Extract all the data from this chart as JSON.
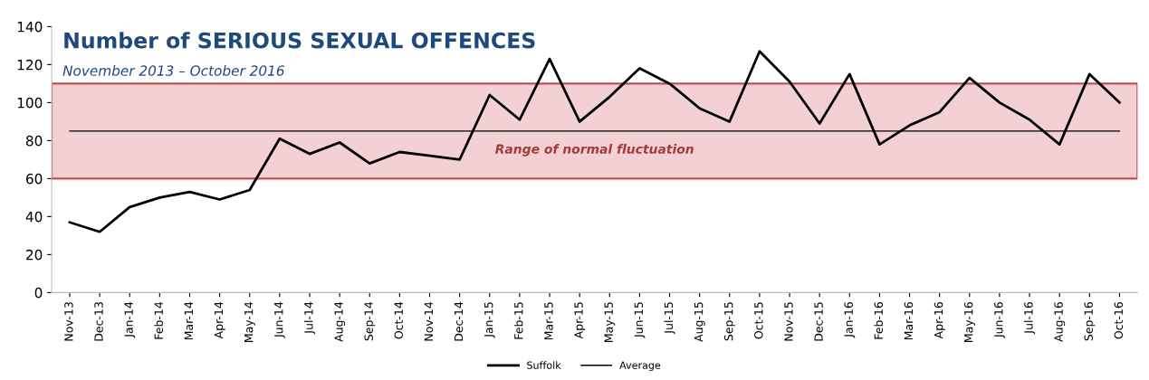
{
  "chart_data": {
    "type": "line",
    "title": "Number of SERIOUS SEXUAL OFFENCES",
    "subtitle": "November 2013 – October 2016",
    "categories": [
      "Nov-13",
      "Dec-13",
      "Jan-14",
      "Feb-14",
      "Mar-14",
      "Apr-14",
      "May-14",
      "Jun-14",
      "Jul-14",
      "Aug-14",
      "Sep-14",
      "Oct-14",
      "Nov-14",
      "Dec-14",
      "Jan-15",
      "Feb-15",
      "Mar-15",
      "Apr-15",
      "May-15",
      "Jun-15",
      "Jul-15",
      "Aug-15",
      "Sep-15",
      "Oct-15",
      "Nov-15",
      "Dec-15",
      "Jan-16",
      "Feb-16",
      "Mar-16",
      "Apr-16",
      "May-16",
      "Jun-16",
      "Jul-16",
      "Aug-16",
      "Sep-16",
      "Oct-16"
    ],
    "series": [
      {
        "name": "Suffolk",
        "color": "#000000",
        "values": [
          37,
          32,
          45,
          50,
          53,
          49,
          54,
          81,
          73,
          79,
          68,
          74,
          72,
          70,
          104,
          91,
          123,
          90,
          103,
          118,
          110,
          97,
          90,
          127,
          111,
          89,
          115,
          78,
          88,
          95,
          113,
          100,
          91,
          78,
          115,
          100
        ]
      },
      {
        "name": "Average",
        "color": "#000000",
        "values": [
          85,
          85,
          85,
          85,
          85,
          85,
          85,
          85,
          85,
          85,
          85,
          85,
          85,
          85,
          85,
          85,
          85,
          85,
          85,
          85,
          85,
          85,
          85,
          85,
          85,
          85,
          85,
          85,
          85,
          85,
          85,
          85,
          85,
          85,
          85,
          85
        ]
      }
    ],
    "bands": [
      {
        "axis": "y",
        "from": 60,
        "to": 110,
        "label": "Range of normal fluctuation",
        "color": "#f2d0d3"
      }
    ],
    "ylim": [
      0,
      140
    ],
    "yticks": [
      0,
      20,
      40,
      60,
      80,
      100,
      120,
      140
    ],
    "grid": false,
    "legend": "bottom",
    "marker": "none",
    "line_style": "solid"
  }
}
